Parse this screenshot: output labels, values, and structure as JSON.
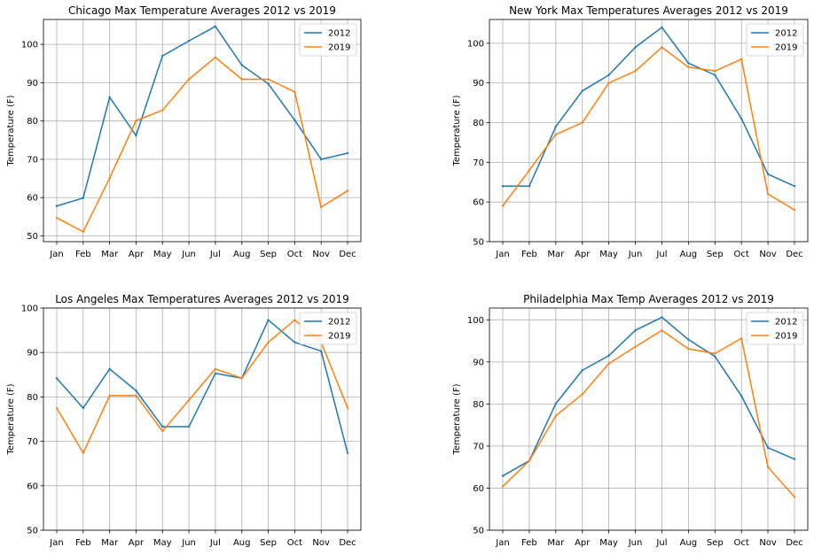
{
  "chart_data": [
    {
      "type": "line",
      "title": "Chicago Max Temperature Averages 2012 vs 2019",
      "ylabel": "Temperature (F)",
      "xlabel": "",
      "categories": [
        "Jan",
        "Feb",
        "Mar",
        "Apr",
        "May",
        "Jun",
        "Jul",
        "Aug",
        "Sep",
        "Oct",
        "Nov",
        "Dec"
      ],
      "yticks": [
        50,
        60,
        70,
        80,
        90,
        100
      ],
      "ylim": [
        48.5,
        106.5
      ],
      "grid": true,
      "legend": "top-right",
      "series": [
        {
          "name": "2012",
          "color": "#1f77b4",
          "values": [
            57.8,
            59.9,
            86.2,
            76.2,
            97.0,
            100.9,
            104.7,
            94.6,
            89.7,
            80.2,
            70.0,
            71.6
          ]
        },
        {
          "name": "2019",
          "color": "#ff7f0e",
          "values": [
            54.7,
            51.1,
            65.1,
            80.1,
            82.8,
            90.9,
            96.6,
            90.9,
            90.9,
            87.6,
            57.5,
            61.8
          ]
        }
      ]
    },
    {
      "type": "line",
      "title": "New York Max Temperatures Averages 2012 vs 2019",
      "ylabel": "Temperature (F)",
      "xlabel": "",
      "categories": [
        "Jan",
        "Feb",
        "Mar",
        "Apr",
        "May",
        "Jun",
        "Jul",
        "Aug",
        "Sep",
        "Oct",
        "Nov",
        "Dec"
      ],
      "yticks": [
        50,
        60,
        70,
        80,
        90,
        100
      ],
      "ylim": [
        50,
        106
      ],
      "grid": true,
      "legend": "top-right",
      "series": [
        {
          "name": "2012",
          "color": "#1f77b4",
          "values": [
            64,
            64,
            79,
            88,
            92,
            99,
            104,
            95,
            92,
            81,
            67,
            64
          ]
        },
        {
          "name": "2019",
          "color": "#ff7f0e",
          "values": [
            59,
            68,
            77,
            80,
            90,
            93,
            99,
            94,
            93,
            96,
            62,
            58
          ]
        }
      ]
    },
    {
      "type": "line",
      "title": "Los Angeles Max Temperatures Averages 2012 vs 2019",
      "ylabel": "Temperature (F)",
      "xlabel": "",
      "categories": [
        "Jan",
        "Feb",
        "Mar",
        "Apr",
        "May",
        "Jun",
        "Jul",
        "Aug",
        "Sep",
        "Oct",
        "Nov",
        "Dec"
      ],
      "yticks": [
        50,
        60,
        70,
        80,
        90,
        100
      ],
      "ylim": [
        50,
        100
      ],
      "grid": true,
      "legend": "top-right",
      "series": [
        {
          "name": "2012",
          "color": "#1f77b4",
          "values": [
            84.2,
            77.5,
            86.3,
            81.4,
            73.3,
            73.3,
            85.3,
            84.2,
            97.3,
            92.3,
            90.3,
            67.4
          ]
        },
        {
          "name": "2019",
          "color": "#ff7f0e",
          "values": [
            77.5,
            67.4,
            80.3,
            80.3,
            72.3,
            79.3,
            86.3,
            84.2,
            92.3,
            97.3,
            92.3,
            77.5
          ]
        }
      ]
    },
    {
      "type": "line",
      "title": "Philadelphia Max Temp Averages 2012 vs 2019",
      "ylabel": "Temperature (F)",
      "xlabel": "",
      "categories": [
        "Jan",
        "Feb",
        "Mar",
        "Apr",
        "May",
        "Jun",
        "Jul",
        "Aug",
        "Sep",
        "Oct",
        "Nov",
        "Dec"
      ],
      "yticks": [
        50,
        60,
        70,
        80,
        90,
        100
      ],
      "ylim": [
        50,
        102.8
      ],
      "grid": true,
      "legend": "top-right",
      "series": [
        {
          "name": "2012",
          "color": "#1f77b4",
          "values": [
            62.9,
            66.5,
            80.1,
            88.0,
            91.5,
            97.5,
            100.6,
            95.3,
            91.3,
            81.9,
            69.6,
            66.9
          ]
        },
        {
          "name": "2019",
          "color": "#ff7f0e",
          "values": [
            60.4,
            66.5,
            77.2,
            82.3,
            89.6,
            93.6,
            97.5,
            93.1,
            92.0,
            95.6,
            65.0,
            57.9
          ]
        }
      ]
    }
  ]
}
